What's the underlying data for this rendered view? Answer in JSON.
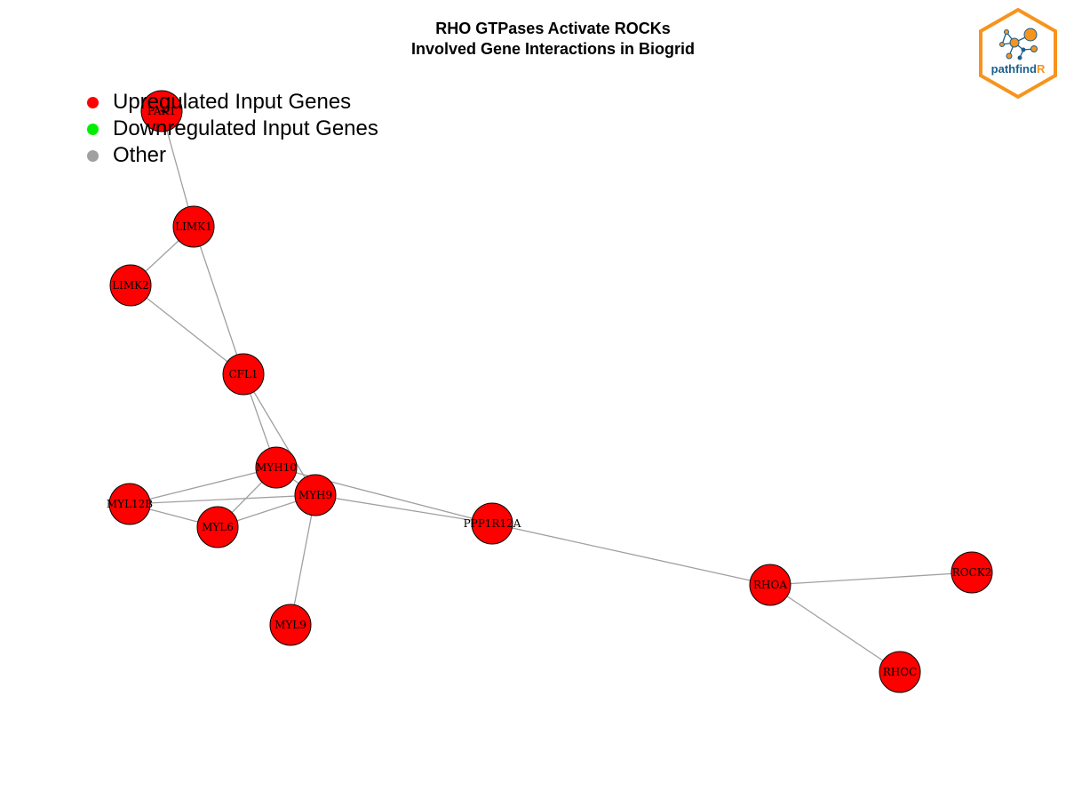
{
  "title": {
    "line1": "RHO GTPases Activate ROCKs",
    "line2": "Involved Gene Interactions in Biogrid"
  },
  "legend": {
    "items": [
      {
        "label": "Upregulated Input Genes",
        "color": "#ff0000"
      },
      {
        "label": "Downregulated Input Genes",
        "color": "#00ee00"
      },
      {
        "label": "Other",
        "color": "#a0a0a0"
      }
    ]
  },
  "logo": {
    "text_main": "pathfind",
    "text_accent": "R",
    "border_color": "#f7941d",
    "accent_color": "#f7941d",
    "text_color": "#1b5f8c"
  },
  "network": {
    "node_color": "#ff0000",
    "edge_color": "#a0a0a0",
    "nodes": [
      {
        "id": "PAK1",
        "label": "PAK1"
      },
      {
        "id": "LIMK1",
        "label": "LIMK1"
      },
      {
        "id": "LIMK2",
        "label": "LIMK2"
      },
      {
        "id": "CFL1",
        "label": "CFL1"
      },
      {
        "id": "MYH10",
        "label": "MYH10"
      },
      {
        "id": "MYH9",
        "label": "MYH9"
      },
      {
        "id": "MYL12B",
        "label": "MYL12B"
      },
      {
        "id": "MYL6",
        "label": "MYL6"
      },
      {
        "id": "MYL9",
        "label": "MYL9"
      },
      {
        "id": "PPP1R12A",
        "label": "PPP1R12A"
      },
      {
        "id": "RHOA",
        "label": "RHOA"
      },
      {
        "id": "ROCK2",
        "label": "ROCK2"
      },
      {
        "id": "RHOC",
        "label": "RHOC"
      }
    ],
    "edges": [
      [
        "PAK1",
        "LIMK1"
      ],
      [
        "LIMK1",
        "LIMK2"
      ],
      [
        "LIMK1",
        "CFL1"
      ],
      [
        "LIMK2",
        "CFL1"
      ],
      [
        "CFL1",
        "MYH10"
      ],
      [
        "CFL1",
        "MYH9"
      ],
      [
        "MYH10",
        "MYL12B"
      ],
      [
        "MYH10",
        "MYL6"
      ],
      [
        "MYH10",
        "MYH9"
      ],
      [
        "MYH9",
        "MYL12B"
      ],
      [
        "MYH9",
        "MYL6"
      ],
      [
        "MYH9",
        "MYL9"
      ],
      [
        "MYH9",
        "PPP1R12A"
      ],
      [
        "MYH10",
        "PPP1R12A"
      ],
      [
        "MYL12B",
        "MYL6"
      ],
      [
        "PPP1R12A",
        "RHOA"
      ],
      [
        "RHOA",
        "ROCK2"
      ],
      [
        "RHOA",
        "RHOC"
      ]
    ]
  }
}
